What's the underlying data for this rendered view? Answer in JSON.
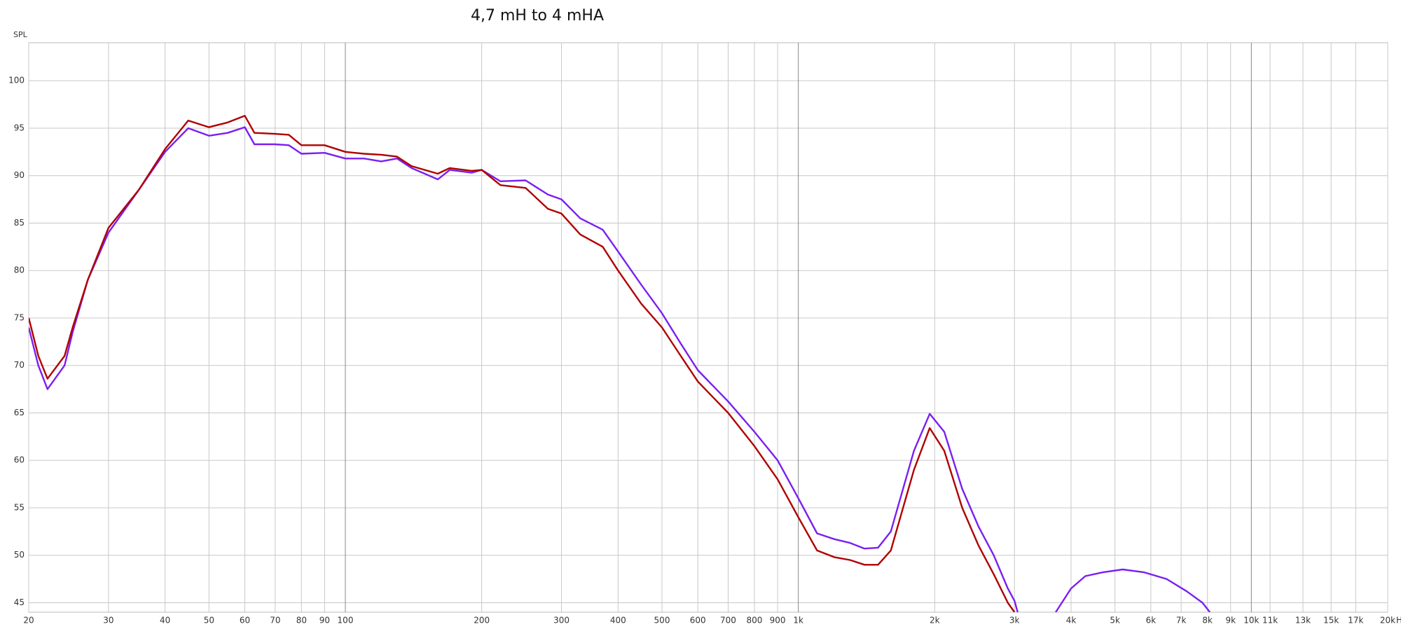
{
  "chart_data": {
    "type": "line",
    "title": "4,7 mH to 4 mHA",
    "y_label": "SPL",
    "x_unit": "Hz",
    "xlog": true,
    "grid": true,
    "xlim": [
      20,
      20000
    ],
    "ylim": [
      44,
      104
    ],
    "xticks": [
      20,
      30,
      40,
      50,
      60,
      70,
      80,
      90,
      100,
      200,
      300,
      400,
      500,
      600,
      700,
      800,
      900,
      {
        "value": 1000,
        "label": "1k"
      },
      {
        "value": 2000,
        "label": "2k"
      },
      {
        "value": 3000,
        "label": "3k"
      },
      {
        "value": 4000,
        "label": "4k"
      },
      {
        "value": 5000,
        "label": "5k"
      },
      {
        "value": 6000,
        "label": "6k"
      },
      {
        "value": 7000,
        "label": "7k"
      },
      {
        "value": 8000,
        "label": "8k"
      },
      {
        "value": 9000,
        "label": "9k"
      },
      {
        "value": 10000,
        "label": "10k"
      },
      {
        "value": 11000,
        "label": "11k"
      },
      {
        "value": 13000,
        "label": "13k"
      },
      {
        "value": 15000,
        "label": "15k"
      },
      {
        "value": 17000,
        "label": "17k"
      },
      {
        "value": 20000,
        "label": "20k"
      }
    ],
    "yticks": [
      45,
      50,
      55,
      60,
      65,
      70,
      75,
      80,
      85,
      90,
      95,
      100
    ],
    "x": [
      20,
      21,
      22,
      24,
      25,
      27,
      30,
      35,
      40,
      45,
      50,
      55,
      60,
      63,
      70,
      75,
      80,
      90,
      100,
      110,
      120,
      130,
      140,
      160,
      170,
      190,
      200,
      220,
      250,
      280,
      300,
      330,
      370,
      400,
      450,
      500,
      550,
      600,
      700,
      800,
      900,
      1000,
      1100,
      1200,
      1300,
      1400,
      1500,
      1600,
      1800,
      1950,
      2100,
      2300,
      2500,
      2700,
      2900,
      3000,
      3050,
      3400,
      3700,
      4000,
      4300,
      4700,
      5200,
      5800,
      6500,
      7200,
      7800,
      8100
    ],
    "series": [
      {
        "color": "#7a1ff0",
        "values": [
          74,
          70,
          67.5,
          70,
          73.5,
          79,
          84,
          88.5,
          92.5,
          95,
          94.2,
          94.5,
          95.1,
          93.3,
          93.3,
          93.2,
          92.3,
          92.4,
          91.8,
          91.8,
          91.5,
          91.8,
          90.8,
          89.6,
          90.6,
          90.3,
          90.6,
          89.4,
          89.5,
          88,
          87.5,
          85.5,
          84.3,
          82,
          78.5,
          75.5,
          72.3,
          69.5,
          66.2,
          63,
          60,
          56,
          52.3,
          51.7,
          51.3,
          50.7,
          50.8,
          52.5,
          61,
          64.9,
          63,
          57,
          53,
          50,
          46.5,
          45.2,
          44,
          null,
          44,
          46.5,
          47.8,
          48.2,
          48.5,
          48.2,
          47.5,
          46.2,
          45,
          44
        ]
      },
      {
        "color": "#b00000",
        "values": [
          75,
          71,
          68.6,
          71,
          74,
          79,
          84.5,
          88.5,
          92.8,
          95.8,
          95.1,
          95.6,
          96.3,
          94.5,
          94.4,
          94.3,
          93.2,
          93.2,
          92.5,
          92.3,
          92.2,
          92,
          91,
          90.2,
          90.8,
          90.5,
          90.6,
          89,
          88.7,
          86.5,
          86,
          83.8,
          82.5,
          80,
          76.5,
          74,
          71,
          68.3,
          65,
          61.5,
          58,
          54,
          50.5,
          49.8,
          49.5,
          49,
          49,
          50.5,
          59,
          63.4,
          61,
          55,
          51,
          48,
          45,
          44,
          null,
          null,
          null,
          null,
          null,
          null,
          null,
          null,
          null,
          null,
          null,
          null
        ]
      }
    ]
  }
}
